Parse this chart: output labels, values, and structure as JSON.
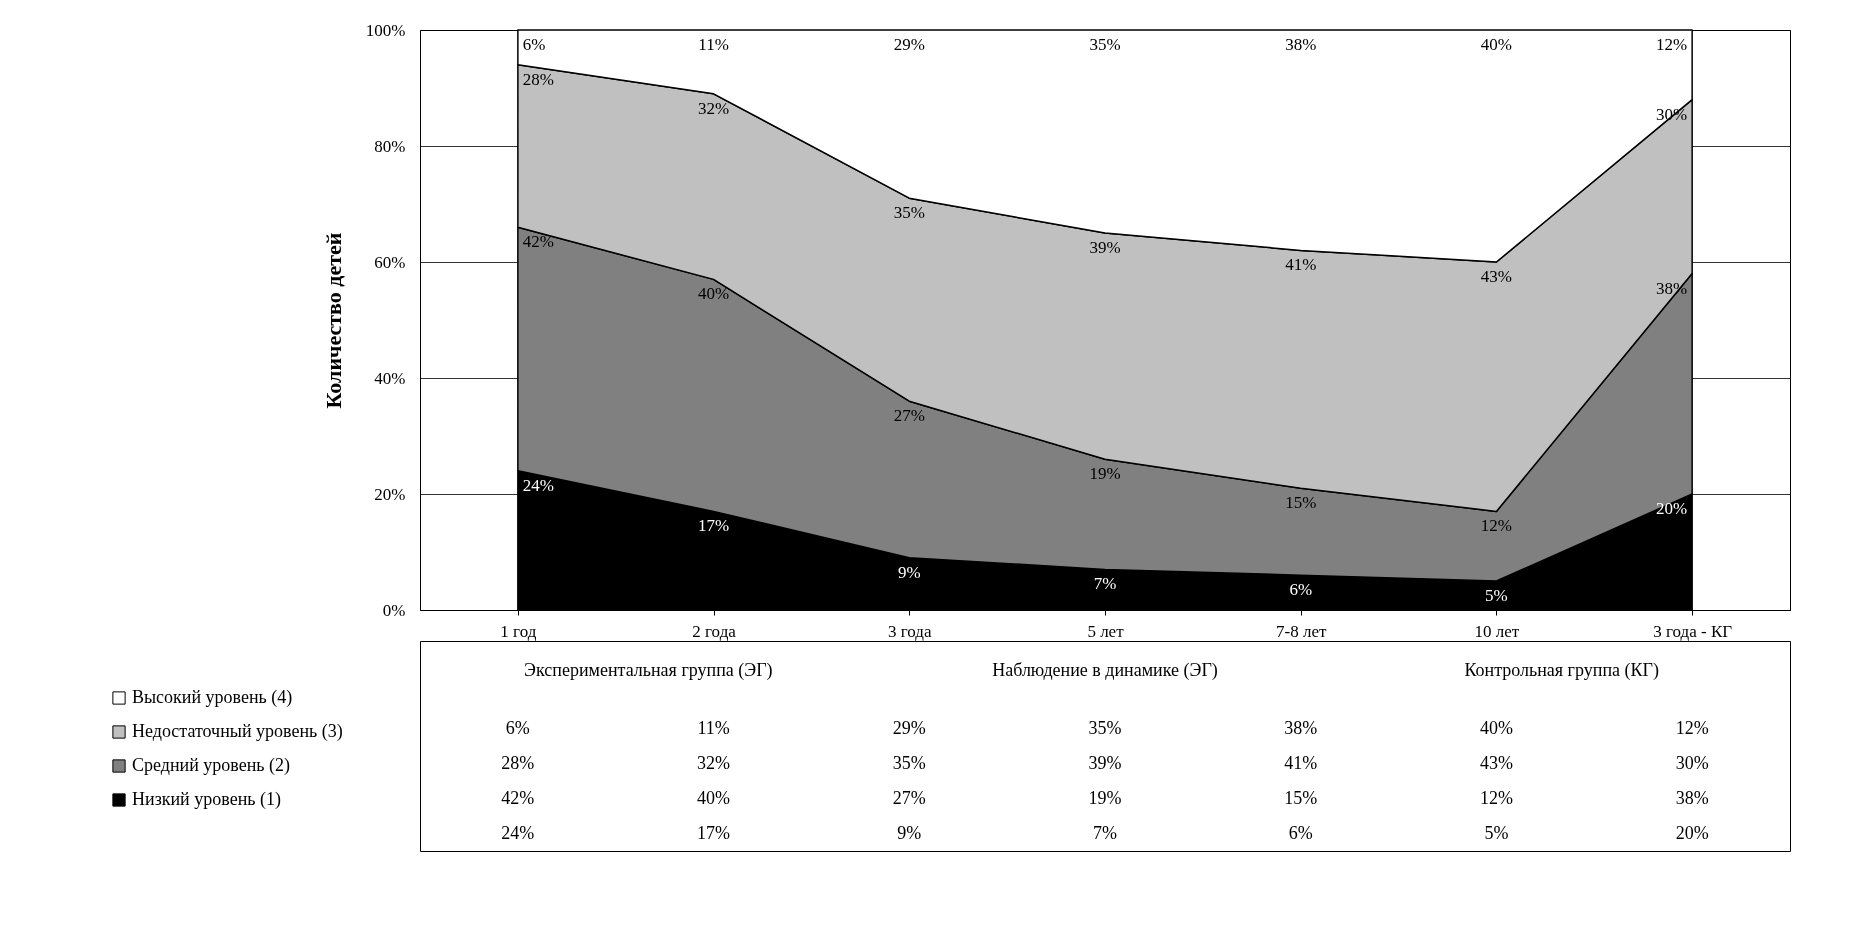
{
  "chart_data": {
    "type": "area",
    "stacked": true,
    "ylabel": "Количество детей",
    "categories": [
      "1 год",
      "2 года",
      "3 года",
      "5 лет",
      "7-8 лет",
      "10 лет",
      "3 года - КГ"
    ],
    "series": [
      {
        "name": "Низкий уровень (1)",
        "color": "#000000",
        "values": [
          24,
          17,
          9,
          7,
          6,
          5,
          20
        ],
        "value_labels": [
          "24%",
          "17%",
          "9%",
          "7%",
          "6%",
          "5%",
          "20%"
        ]
      },
      {
        "name": "Средний уровень (2)",
        "color": "#808080",
        "values": [
          42,
          40,
          27,
          19,
          15,
          12,
          38
        ],
        "value_labels": [
          "42%",
          "40%",
          "27%",
          "19%",
          "15%",
          "12%",
          "38%"
        ]
      },
      {
        "name": "Недостаточный уровень (3)",
        "color": "#c0c0c0",
        "values": [
          28,
          32,
          35,
          39,
          41,
          43,
          30
        ],
        "value_labels": [
          "28%",
          "32%",
          "35%",
          "39%",
          "41%",
          "43%",
          "30%"
        ]
      },
      {
        "name": "Высокий уровень (4)",
        "color": "#ffffff",
        "values": [
          6,
          11,
          29,
          35,
          38,
          40,
          12
        ],
        "value_labels": [
          "6%",
          "11%",
          "29%",
          "35%",
          "38%",
          "40%",
          "12%"
        ]
      }
    ],
    "ylim": [
      0,
      100
    ],
    "yticks": [
      {
        "value": 0,
        "label": "0%"
      },
      {
        "value": 20,
        "label": "20%"
      },
      {
        "value": 40,
        "label": "40%"
      },
      {
        "value": 60,
        "label": "60%"
      },
      {
        "value": 80,
        "label": "80%"
      },
      {
        "value": 100,
        "label": "100%"
      }
    ],
    "grid": "y",
    "legend": "bottom left",
    "annotations": [
      "Экспериментальная группа (ЭГ)",
      "Наблюдение в динамике (ЭГ)",
      "Контрольная группа (КГ)"
    ]
  }
}
